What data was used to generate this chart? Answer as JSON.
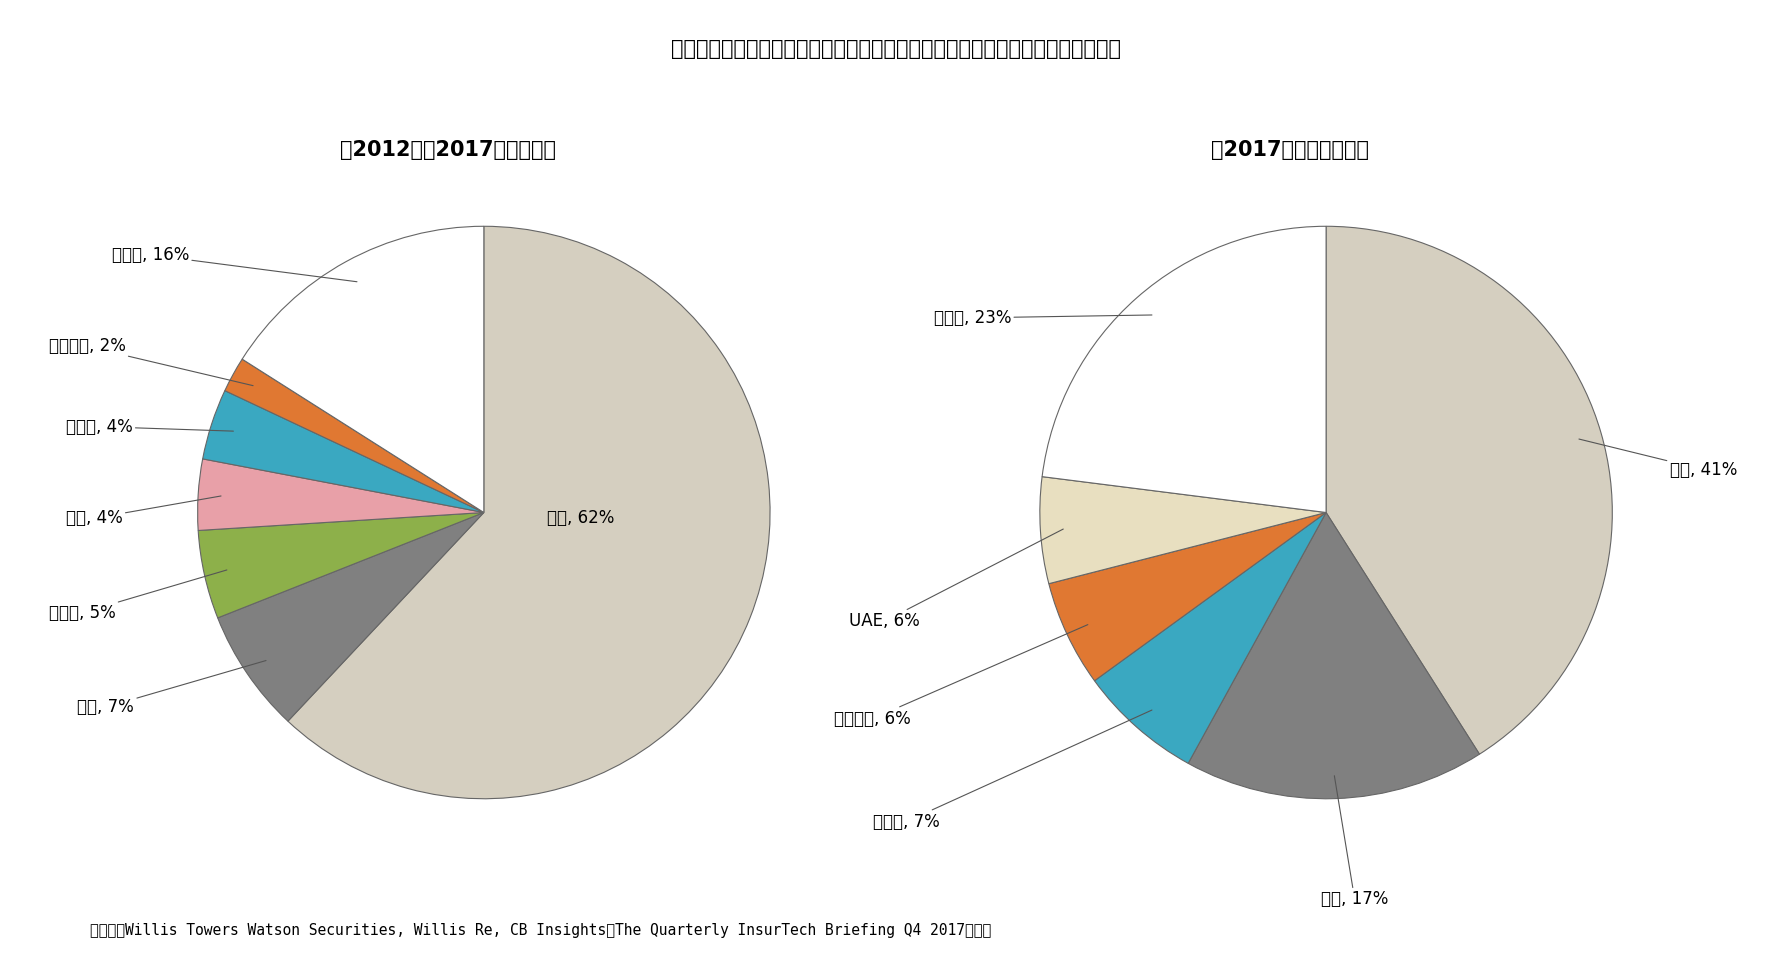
{
  "title": "グラフ３　資金調達を行ったインシュアテックスタートアップの拠点国分布状況",
  "subtitle_left": "「2012年～2017年全案件」",
  "subtitle_right": "「2017年第４四半期」",
  "footnote": "（資料）Willis Towers Watson Securities, Willis Re, CB Insights「The Quarterly InsurTech Briefing Q4 2017」より",
  "pie1": {
    "labels": [
      "米国",
      "英国",
      "ドイツ",
      "中国",
      "インド",
      "フランス",
      "その他"
    ],
    "values": [
      62,
      7,
      5,
      4,
      4,
      2,
      16
    ],
    "colors": [
      "#d5cfc0",
      "#808080",
      "#8db04a",
      "#e8a0a8",
      "#3aa8c1",
      "#e07832",
      "#ffffff"
    ],
    "label_texts": [
      "米国, 62%",
      "英国, 7%",
      "ドイツ, 5%",
      "中国, 4%",
      "インド, 4%",
      "フランス, 2%",
      "その他, 16%"
    ],
    "startangle": 90
  },
  "pie2": {
    "labels": [
      "米国",
      "英国",
      "インド",
      "フランス",
      "UAE",
      "その他"
    ],
    "values": [
      41,
      17,
      7,
      6,
      6,
      23
    ],
    "colors": [
      "#d5cfc0",
      "#808080",
      "#3aa8c1",
      "#e07832",
      "#e8dfc0",
      "#ffffff"
    ],
    "label_texts": [
      "米国, 41%",
      "英国, 17%",
      "インド, 7%",
      "フランス, 6%",
      "UAE, 6%",
      "その他, 23%"
    ],
    "startangle": 90
  },
  "background_color": "#ffffff",
  "title_fontsize": 15,
  "subtitle_fontsize": 15,
  "label_fontsize": 12,
  "footnote_fontsize": 10.5
}
